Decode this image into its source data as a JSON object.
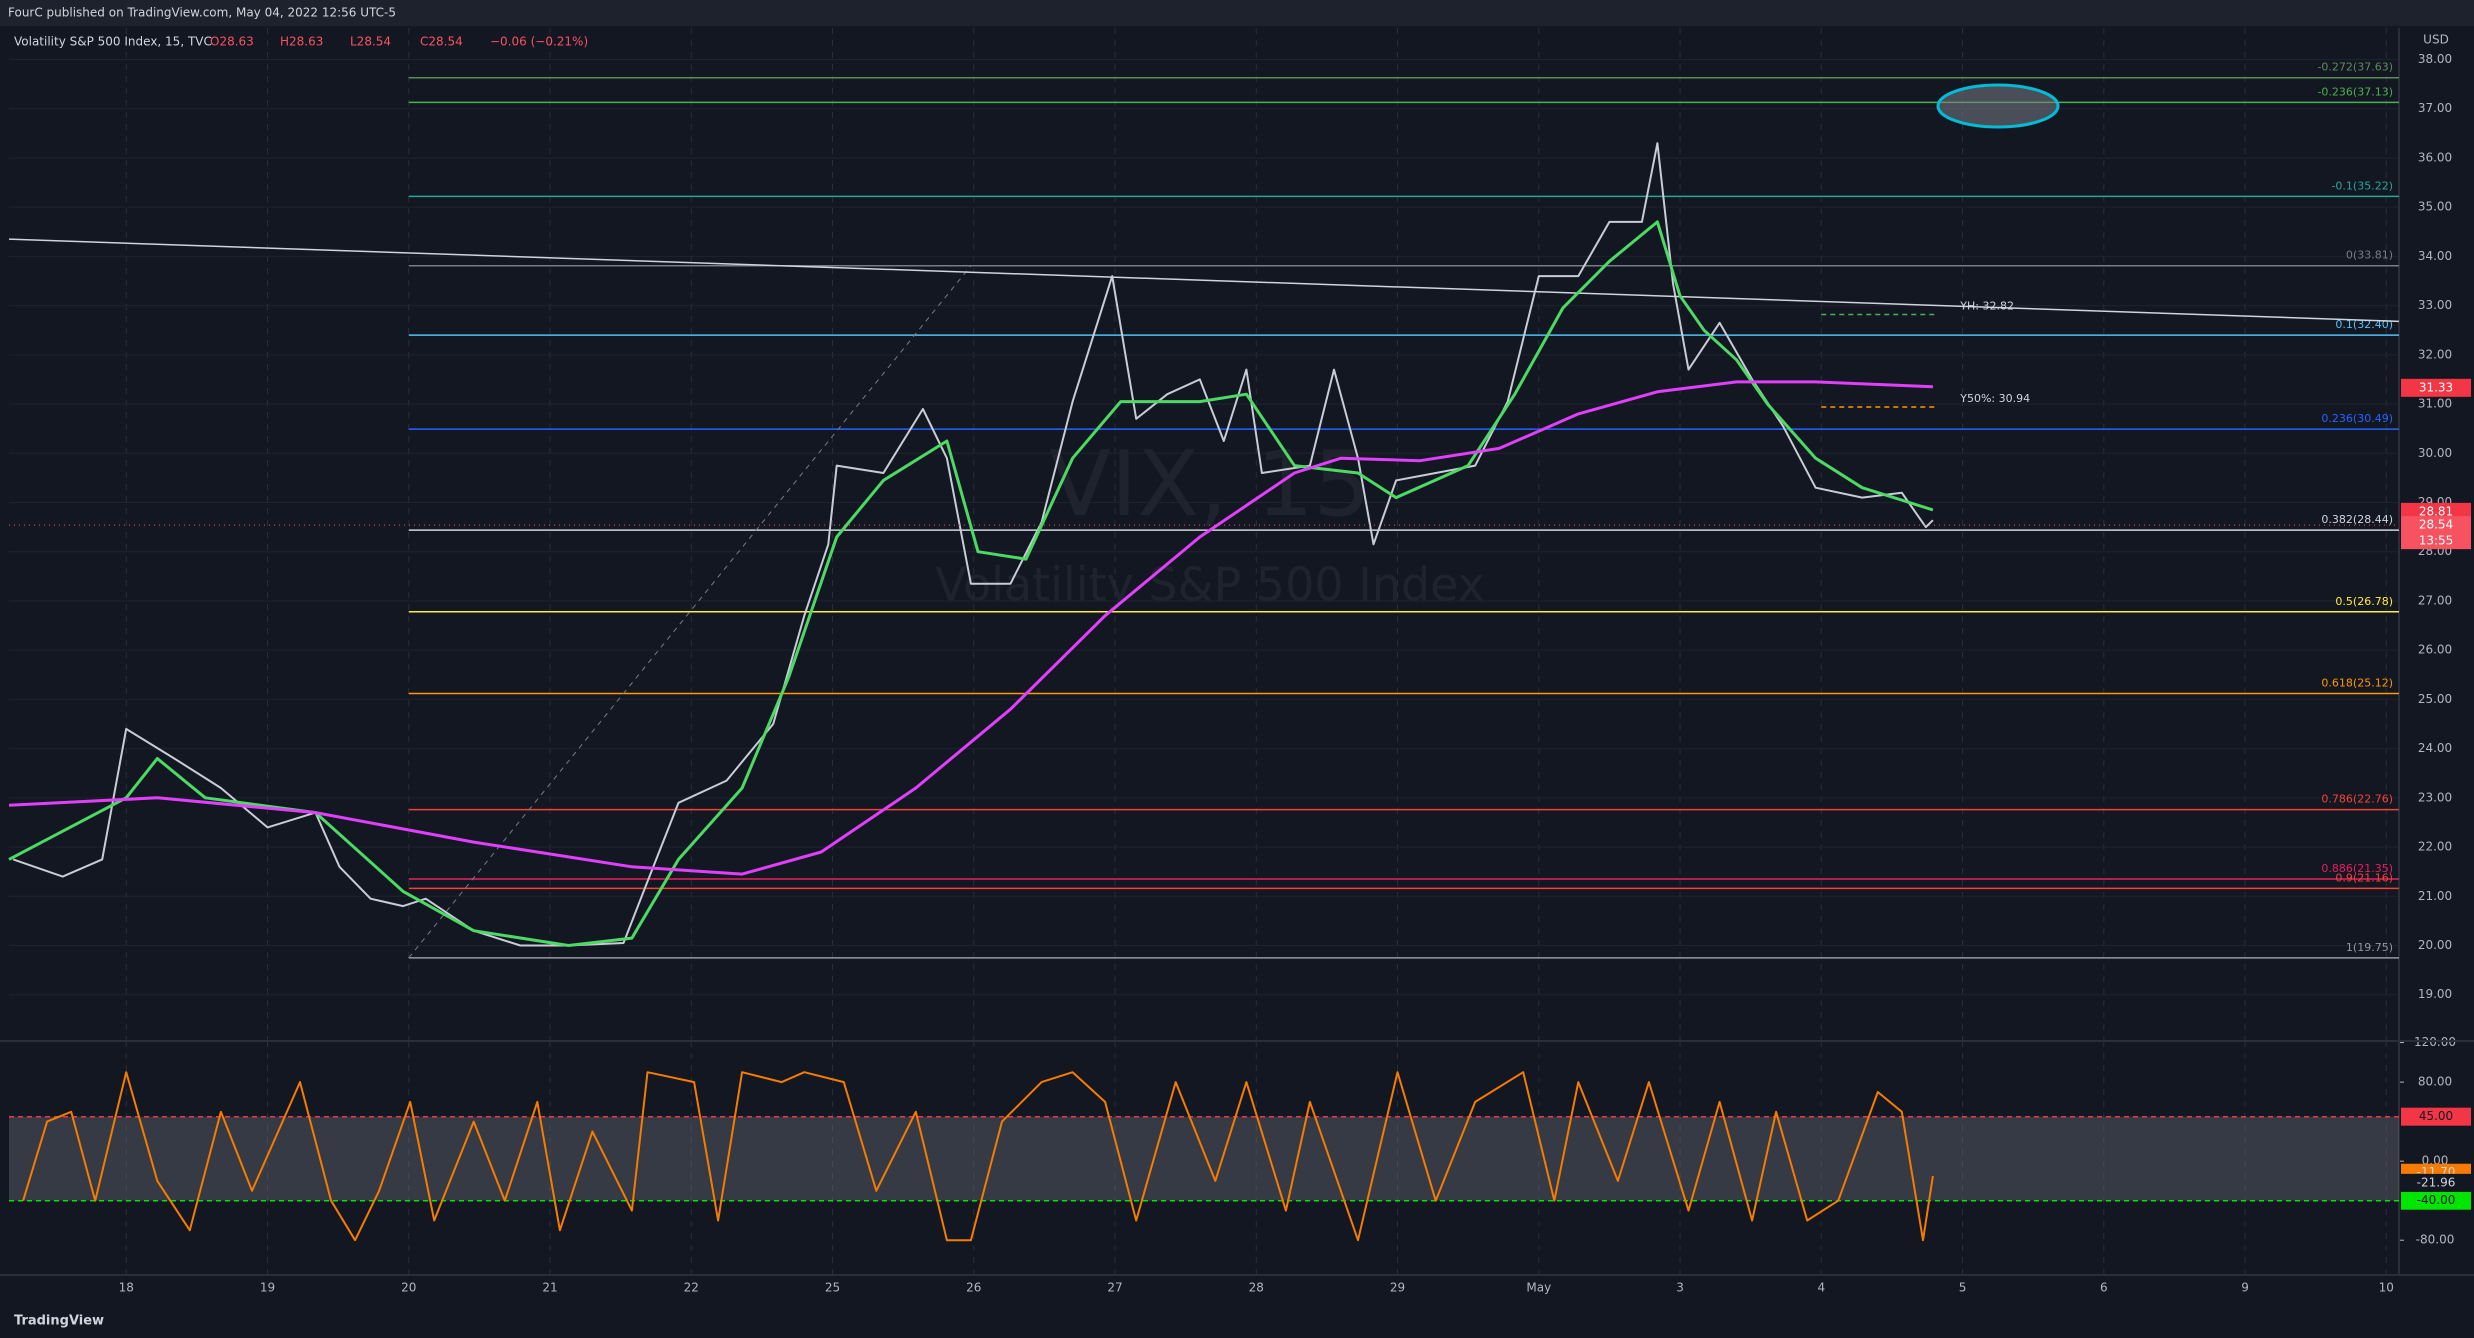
{
  "banner": "FourC published on TradingView.com, May 04, 2022 12:56 UTC-5",
  "footer": "TradingView",
  "chart_data": {
    "type": "line",
    "title": "Volatility S&P 500 Index, 15, TVC",
    "ohlc": [
      "O28.63",
      "H28.63",
      "L28.54",
      "C28.54",
      "−0.06 (−0.21%)"
    ],
    "currency": "USD",
    "watermark": [
      "VIX, 15",
      "Volatility S&P 500 Index"
    ],
    "xlim": [
      -0.83,
      16.09
    ],
    "xticks": [
      {
        "value": 0,
        "label": "18"
      },
      {
        "value": 1,
        "label": "19"
      },
      {
        "value": 2,
        "label": "20"
      },
      {
        "value": 3,
        "label": "21"
      },
      {
        "value": 4,
        "label": "22"
      },
      {
        "value": 5,
        "label": "25"
      },
      {
        "value": 6,
        "label": "26"
      },
      {
        "value": 7,
        "label": "27"
      },
      {
        "value": 8,
        "label": "28"
      },
      {
        "value": 9,
        "label": "29"
      },
      {
        "value": 10,
        "label": "May"
      },
      {
        "value": 11,
        "label": "3"
      },
      {
        "value": 12,
        "label": "4"
      },
      {
        "value": 13,
        "label": "5"
      },
      {
        "value": 14,
        "label": "6"
      },
      {
        "value": 15,
        "label": "9"
      },
      {
        "value": 16,
        "label": "10"
      }
    ],
    "ylim": [
      18.06,
      38.64
    ],
    "yticks": [
      {
        "value": 19,
        "label": "19.00"
      },
      {
        "value": 20,
        "label": "20.00"
      },
      {
        "value": 21,
        "label": "21.00"
      },
      {
        "value": 22,
        "label": "22.00"
      },
      {
        "value": 23,
        "label": "23.00"
      },
      {
        "value": 24,
        "label": "24.00"
      },
      {
        "value": 25,
        "label": "25.00"
      },
      {
        "value": 26,
        "label": "26.00"
      },
      {
        "value": 27,
        "label": "27.00"
      },
      {
        "value": 28,
        "label": "28.00"
      },
      {
        "value": 29,
        "label": "29.00"
      },
      {
        "value": 30,
        "label": "30.00"
      },
      {
        "value": 31,
        "label": "31.00"
      },
      {
        "value": 32,
        "label": "32.00"
      },
      {
        "value": 33,
        "label": "33.00"
      },
      {
        "value": 34,
        "label": "34.00"
      },
      {
        "value": 35,
        "label": "35.00"
      },
      {
        "value": 36,
        "label": "36.00"
      },
      {
        "value": 37,
        "label": "37.00"
      },
      {
        "value": 38,
        "label": "38.00"
      }
    ],
    "grid": true,
    "series": [
      {
        "color": "#c8ccd6",
        "x": [
          -0.8,
          -0.45,
          -0.17,
          0,
          0.34,
          0.67,
          1.0,
          1.34,
          1.51,
          1.73,
          1.96,
          2.12,
          2.46,
          2.79,
          3.13,
          3.52,
          3.69,
          3.91,
          4.25,
          4.58,
          4.8,
          4.97,
          5.03,
          5.36,
          5.64,
          5.81,
          5.98,
          6.26,
          6.48,
          6.7,
          6.98,
          7.15,
          7.37,
          7.6,
          7.77,
          7.93,
          8.04,
          8.38,
          8.55,
          8.72,
          8.83,
          8.99,
          9.27,
          9.55,
          9.78,
          10.0,
          10.28,
          10.5,
          10.73,
          10.84,
          10.95,
          11.06,
          11.28,
          11.51,
          11.73,
          11.96,
          12.29,
          12.57,
          12.74,
          12.79
        ],
        "values": [
          21.75,
          21.4,
          21.75,
          24.4,
          23.8,
          23.2,
          22.4,
          22.7,
          21.6,
          20.95,
          20.8,
          20.95,
          20.3,
          20.0,
          20.0,
          20.05,
          21.3,
          22.9,
          23.35,
          24.5,
          26.7,
          28.15,
          29.75,
          29.6,
          30.9,
          29.9,
          27.35,
          27.35,
          28.6,
          31.05,
          33.6,
          30.7,
          31.2,
          31.5,
          30.25,
          31.7,
          29.6,
          29.75,
          31.7,
          29.9,
          28.15,
          29.45,
          29.6,
          29.75,
          31.05,
          33.6,
          33.6,
          34.7,
          34.7,
          36.3,
          33.45,
          31.7,
          32.65,
          31.5,
          30.55,
          29.3,
          29.1,
          29.2,
          28.5,
          28.64
        ]
      },
      {
        "color": "#4cd964",
        "x": [
          -0.83,
          0,
          0.22,
          0.56,
          1.34,
          1.96,
          2.46,
          3.13,
          3.58,
          3.91,
          4.36,
          4.69,
          5.03,
          5.36,
          5.81,
          6.03,
          6.37,
          6.7,
          7.04,
          7.6,
          7.93,
          8.27,
          8.72,
          8.99,
          9.5,
          9.83,
          10.17,
          10.5,
          10.84,
          11.0,
          11.17,
          11.4,
          11.62,
          11.96,
          12.29,
          12.79
        ],
        "values": [
          21.75,
          23.0,
          23.8,
          23.0,
          22.7,
          21.1,
          20.3,
          20.0,
          20.15,
          21.75,
          23.2,
          25.45,
          28.3,
          29.45,
          30.25,
          28.0,
          27.85,
          29.9,
          31.05,
          31.05,
          31.2,
          29.75,
          29.6,
          29.1,
          29.75,
          31.2,
          32.95,
          33.9,
          34.7,
          33.2,
          32.5,
          31.9,
          31.0,
          29.9,
          29.3,
          28.85
        ]
      },
      {
        "color": "#e040fb",
        "x": [
          -0.83,
          0.22,
          1.34,
          2.46,
          3.58,
          4.36,
          4.92,
          5.59,
          6.26,
          6.93,
          7.6,
          8.27,
          8.6,
          9.16,
          9.72,
          10.28,
          10.84,
          11.4,
          11.96,
          12.79
        ],
        "values": [
          22.85,
          23.0,
          22.7,
          22.1,
          21.6,
          21.45,
          21.9,
          23.2,
          24.8,
          26.7,
          28.3,
          29.6,
          29.9,
          29.85,
          30.1,
          30.8,
          31.25,
          31.45,
          31.45,
          31.35
        ]
      }
    ],
    "trendline": {
      "color": "#d1d4dc",
      "x": [
        -0.83,
        16.09
      ],
      "values": [
        34.35,
        32.68
      ]
    },
    "fib_anchor": {
      "color": "#787b86",
      "x": [
        2,
        5.98
      ],
      "values": [
        19.75,
        33.81
      ]
    },
    "fib_levels": [
      {
        "value": 37.63,
        "label": "-0.272(37.63)",
        "color": "#5d8a5d"
      },
      {
        "value": 37.13,
        "label": "-0.236(37.13)",
        "color": "#4caf50"
      },
      {
        "value": 35.22,
        "label": "-0.1(35.22)",
        "color": "#26a69a"
      },
      {
        "value": 33.81,
        "label": "0(33.81)",
        "color": "#787b86"
      },
      {
        "value": 32.4,
        "label": "0.1(32.40)",
        "color": "#4fc3f7"
      },
      {
        "value": 30.49,
        "label": "0.236(30.49)",
        "color": "#2962ff"
      },
      {
        "value": 28.44,
        "label": "0.382(28.44)",
        "color": "#d1d4dc"
      },
      {
        "value": 26.78,
        "label": "0.5(26.78)",
        "color": "#ffeb3b"
      },
      {
        "value": 25.12,
        "label": "0.618(25.12)",
        "color": "#ff9800"
      },
      {
        "value": 22.76,
        "label": "0.786(22.76)",
        "color": "#f44336"
      },
      {
        "value": 21.35,
        "label": "0.886(21.35)",
        "color": "#e91e63"
      },
      {
        "value": 21.16,
        "label": "0.9(21.16)",
        "color": "#f44336"
      },
      {
        "value": 19.75,
        "label": "1(19.75)",
        "color": "#9598a1"
      }
    ],
    "annotations": [
      {
        "label": "YH: 32.82",
        "value": 32.82,
        "x": [
          12,
          12.8
        ],
        "color": "#4caf50"
      },
      {
        "label": "Y50%: 30.94",
        "value": 30.94,
        "x": [
          12,
          12.8
        ],
        "color": "#ff9800"
      }
    ],
    "price_tags": [
      {
        "value": 31.33,
        "color": "#f23645"
      },
      {
        "value": 28.81,
        "color": "#f23645"
      },
      {
        "value": 28.54,
        "color": "#f7525f"
      }
    ],
    "countdown": "13:55",
    "oscillator": {
      "ylim": [
        -115.2,
        121.6
      ],
      "yticks": [
        {
          "value": 120,
          "label": "120.00"
        },
        {
          "value": 80,
          "label": "80.00"
        },
        {
          "value": 0,
          "label": "0.00"
        },
        {
          "value": -80,
          "label": "-80.00"
        }
      ],
      "levels": [
        {
          "value": 45,
          "label": "45.00",
          "color": "#f23645"
        },
        {
          "value": -40,
          "label": "-40.00",
          "color": "#00e600"
        }
      ],
      "color": "#f57c00",
      "x": [
        -0.73,
        -0.56,
        -0.39,
        -0.22,
        0,
        0.22,
        0.45,
        0.67,
        0.89,
        1.23,
        1.45,
        1.62,
        1.79,
        2.01,
        2.18,
        2.46,
        2.68,
        2.91,
        3.07,
        3.3,
        3.58,
        3.69,
        4.02,
        4.19,
        4.36,
        4.64,
        4.8,
        5.08,
        5.31,
        5.59,
        5.81,
        5.98,
        6.2,
        6.48,
        6.7,
        6.93,
        7.15,
        7.43,
        7.71,
        7.93,
        8.21,
        8.38,
        8.72,
        9.0,
        9.27,
        9.55,
        9.89,
        10.11,
        10.28,
        10.56,
        10.78,
        11.06,
        11.28,
        11.51,
        11.68,
        11.9,
        12.12,
        12.4,
        12.57,
        12.72,
        12.79
      ],
      "values": [
        -40,
        40,
        50,
        -40,
        90,
        -20,
        -70,
        50,
        -30,
        80,
        -40,
        -80,
        -30,
        60,
        -60,
        40,
        -40,
        60,
        -70,
        30,
        -50,
        90,
        80,
        -60,
        90,
        80,
        90,
        80,
        -30,
        50,
        -80,
        -80,
        40,
        80,
        90,
        60,
        -60,
        80,
        -20,
        80,
        -50,
        60,
        -80,
        90,
        -40,
        60,
        90,
        -40,
        80,
        -20,
        80,
        -50,
        60,
        -60,
        50,
        -60,
        -40,
        70,
        50,
        -80,
        -15
      ],
      "tags": [
        {
          "value": -11.7,
          "label": "-11.70",
          "color": "#f57c00"
        },
        {
          "value": -21.96,
          "label": "-21.96",
          "color": "#131722"
        }
      ]
    }
  }
}
